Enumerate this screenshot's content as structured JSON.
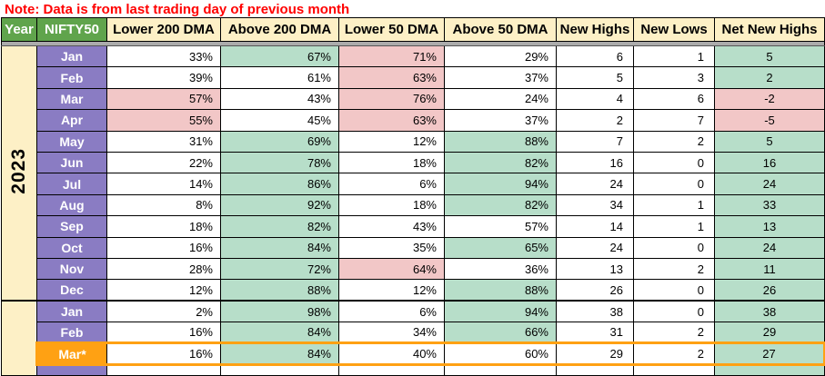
{
  "note": "Note: Data is from last trading day of previous month",
  "columns": [
    "Year",
    "NIFTY50",
    "Lower 200 DMA",
    "Above 200 DMA",
    "Lower 50 DMA",
    "Above 50 DMA",
    "New Highs",
    "New Lows",
    "Net New Highs"
  ],
  "table": {
    "year_groups": [
      {
        "year": "2023",
        "rows": [
          {
            "month": "Jan",
            "values": [
              "33%",
              "67%",
              "71%",
              "29%",
              "6",
              "1",
              "5"
            ],
            "fills": [
              "w",
              "g",
              "p",
              "w",
              "w",
              "w",
              "g"
            ]
          },
          {
            "month": "Feb",
            "values": [
              "39%",
              "61%",
              "63%",
              "37%",
              "5",
              "3",
              "2"
            ],
            "fills": [
              "w",
              "w",
              "p",
              "w",
              "w",
              "w",
              "g"
            ]
          },
          {
            "month": "Mar",
            "values": [
              "57%",
              "43%",
              "76%",
              "24%",
              "4",
              "6",
              "-2"
            ],
            "fills": [
              "p",
              "w",
              "p",
              "w",
              "w",
              "w",
              "p"
            ]
          },
          {
            "month": "Apr",
            "values": [
              "55%",
              "45%",
              "63%",
              "37%",
              "2",
              "7",
              "-5"
            ],
            "fills": [
              "p",
              "w",
              "p",
              "w",
              "w",
              "w",
              "p"
            ]
          },
          {
            "month": "May",
            "values": [
              "31%",
              "69%",
              "12%",
              "88%",
              "7",
              "2",
              "5"
            ],
            "fills": [
              "w",
              "g",
              "w",
              "g",
              "w",
              "w",
              "g"
            ]
          },
          {
            "month": "Jun",
            "values": [
              "22%",
              "78%",
              "18%",
              "82%",
              "16",
              "0",
              "16"
            ],
            "fills": [
              "w",
              "g",
              "w",
              "g",
              "w",
              "w",
              "g"
            ]
          },
          {
            "month": "Jul",
            "values": [
              "14%",
              "86%",
              "6%",
              "94%",
              "24",
              "0",
              "24"
            ],
            "fills": [
              "w",
              "g",
              "w",
              "g",
              "w",
              "w",
              "g"
            ]
          },
          {
            "month": "Aug",
            "values": [
              "8%",
              "92%",
              "18%",
              "82%",
              "34",
              "1",
              "33"
            ],
            "fills": [
              "w",
              "g",
              "w",
              "g",
              "w",
              "w",
              "g"
            ]
          },
          {
            "month": "Sep",
            "values": [
              "18%",
              "82%",
              "43%",
              "57%",
              "14",
              "1",
              "13"
            ],
            "fills": [
              "w",
              "g",
              "w",
              "w",
              "w",
              "w",
              "g"
            ]
          },
          {
            "month": "Oct",
            "values": [
              "16%",
              "84%",
              "35%",
              "65%",
              "24",
              "0",
              "24"
            ],
            "fills": [
              "w",
              "g",
              "w",
              "g",
              "w",
              "w",
              "g"
            ]
          },
          {
            "month": "Nov",
            "values": [
              "28%",
              "72%",
              "64%",
              "36%",
              "13",
              "2",
              "11"
            ],
            "fills": [
              "w",
              "g",
              "p",
              "w",
              "w",
              "w",
              "g"
            ]
          },
          {
            "month": "Dec",
            "values": [
              "12%",
              "88%",
              "12%",
              "88%",
              "26",
              "0",
              "26"
            ],
            "fills": [
              "w",
              "g",
              "w",
              "g",
              "w",
              "w",
              "g"
            ]
          }
        ]
      },
      {
        "year": "",
        "rows": [
          {
            "month": "Jan",
            "values": [
              "2%",
              "98%",
              "6%",
              "94%",
              "38",
              "0",
              "38"
            ],
            "fills": [
              "w",
              "g",
              "w",
              "g",
              "w",
              "w",
              "g"
            ]
          },
          {
            "month": "Feb",
            "values": [
              "16%",
              "84%",
              "34%",
              "66%",
              "31",
              "2",
              "29"
            ],
            "fills": [
              "w",
              "g",
              "w",
              "g",
              "w",
              "w",
              "g"
            ]
          },
          {
            "month": "Mar*",
            "values": [
              "16%",
              "84%",
              "40%",
              "60%",
              "29",
              "2",
              "27"
            ],
            "fills": [
              "w",
              "g",
              "w",
              "w",
              "w",
              "w",
              "g"
            ],
            "highlight": true
          },
          {
            "month": "",
            "values": [
              "",
              "",
              "",
              "",
              "",
              "",
              ""
            ],
            "fills": [
              "w",
              "w",
              "w",
              "w",
              "w",
              "w",
              "g"
            ],
            "partial": true
          }
        ]
      }
    ]
  },
  "colors": {
    "note_red": "#FF0000",
    "header_green": "#60A44C",
    "header_cream": "#FDF0C6",
    "month_purple": "#8A7CC3",
    "cell_green": "#B7DEC9",
    "cell_pink": "#F2C7C7",
    "highlight_orange": "#FFA113",
    "divider_gray": "#ABABAB",
    "grid_border": "#000000"
  }
}
